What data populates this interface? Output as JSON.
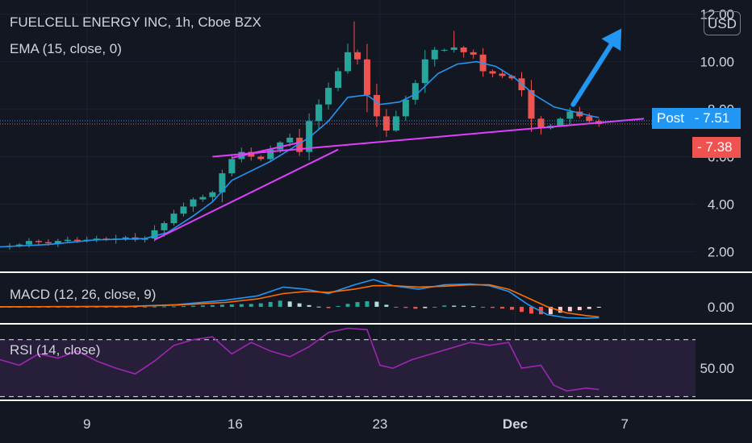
{
  "header": {
    "title": "FUELCELL ENERGY INC, 1h, Cboe BZX",
    "ema_label": "EMA (15, close, 0)",
    "macd_label": "MACD (12, 26, close, 9)",
    "rsi_label": "RSI (14, close)"
  },
  "currency_button": "USD",
  "badges": {
    "post_label": "Post",
    "post_price": "7.51",
    "last_price": "7.38"
  },
  "colors": {
    "background": "#131722",
    "up": "#26a69a",
    "down": "#ef5350",
    "ema": "#2196f3",
    "trendline": "#e040fb",
    "arrow": "#2196f3",
    "post_badge": "#2196f3",
    "last_badge": "#ef5350",
    "macd_line": "#2196f3",
    "signal_line": "#ff6d00",
    "rsi_line": "#9c27b0"
  },
  "chart_data": [
    {
      "type": "candlestick",
      "title": "FUELCELL ENERGY INC, 1h, Cboe BZX",
      "x_ticks": [
        "9",
        "16",
        "23",
        "Dec",
        "7"
      ],
      "y_ticks": [
        "2.00",
        "4.00",
        "6.00",
        "8.00",
        "10.00",
        "12.00"
      ],
      "ylim": [
        1.2,
        12.6
      ],
      "close_series": [
        [
          0,
          2.2
        ],
        [
          3,
          2.25
        ],
        [
          6,
          2.3
        ],
        [
          9,
          2.45
        ],
        [
          12,
          2.4
        ],
        [
          15,
          2.35
        ],
        [
          18,
          2.45
        ],
        [
          21,
          2.5
        ],
        [
          24,
          2.45
        ],
        [
          27,
          2.5
        ],
        [
          30,
          2.55
        ],
        [
          33,
          2.5
        ],
        [
          36,
          2.55
        ],
        [
          39,
          2.6
        ],
        [
          42,
          2.5
        ],
        [
          45,
          2.55
        ],
        [
          48,
          2.9
        ],
        [
          51,
          3.2
        ],
        [
          54,
          3.6
        ],
        [
          57,
          3.9
        ],
        [
          60,
          4.2
        ],
        [
          63,
          4.3
        ],
        [
          66,
          4.5
        ],
        [
          69,
          5.3
        ],
        [
          72,
          5.9
        ],
        [
          75,
          6.2
        ],
        [
          78,
          6.0
        ],
        [
          81,
          5.9
        ],
        [
          84,
          6.3
        ],
        [
          87,
          6.6
        ],
        [
          90,
          6.8
        ],
        [
          93,
          6.2
        ],
        [
          96,
          7.5
        ],
        [
          99,
          8.2
        ],
        [
          102,
          8.9
        ],
        [
          105,
          9.6
        ],
        [
          108,
          10.4
        ],
        [
          111,
          10.1
        ],
        [
          114,
          8.6
        ],
        [
          117,
          7.7
        ],
        [
          120,
          7.1
        ],
        [
          123,
          7.7
        ],
        [
          126,
          8.4
        ],
        [
          129,
          9.1
        ],
        [
          132,
          10.1
        ],
        [
          135,
          10.5
        ],
        [
          138,
          10.5
        ],
        [
          141,
          10.6
        ],
        [
          144,
          10.4
        ],
        [
          147,
          10.3
        ],
        [
          150,
          9.6
        ],
        [
          153,
          9.5
        ],
        [
          156,
          9.4
        ],
        [
          159,
          9.3
        ],
        [
          162,
          8.8
        ],
        [
          165,
          7.6
        ],
        [
          168,
          7.2
        ],
        [
          171,
          7.3
        ],
        [
          174,
          7.6
        ],
        [
          177,
          7.9
        ],
        [
          180,
          7.7
        ],
        [
          183,
          7.5
        ],
        [
          186,
          7.38
        ]
      ],
      "ema_series": [
        [
          0,
          2.2
        ],
        [
          15,
          2.3
        ],
        [
          30,
          2.5
        ],
        [
          45,
          2.55
        ],
        [
          52,
          2.8
        ],
        [
          60,
          3.5
        ],
        [
          66,
          4.1
        ],
        [
          72,
          5.0
        ],
        [
          78,
          5.4
        ],
        [
          84,
          5.8
        ],
        [
          90,
          6.3
        ],
        [
          96,
          6.8
        ],
        [
          102,
          7.5
        ],
        [
          108,
          8.5
        ],
        [
          114,
          8.6
        ],
        [
          118,
          8.2
        ],
        [
          124,
          8.3
        ],
        [
          130,
          8.7
        ],
        [
          136,
          9.5
        ],
        [
          142,
          9.9
        ],
        [
          148,
          10.0
        ],
        [
          154,
          9.8
        ],
        [
          160,
          9.3
        ],
        [
          166,
          8.6
        ],
        [
          172,
          8.1
        ],
        [
          178,
          7.9
        ],
        [
          184,
          7.7
        ],
        [
          186,
          7.65
        ]
      ],
      "annotations": {
        "lower_trendline": [
          [
            48,
            2.5
          ],
          [
            105,
            6.3
          ]
        ],
        "upper_trendline": [
          [
            66,
            6.0
          ],
          [
            200,
            7.6
          ]
        ],
        "arrow": [
          [
            178,
            8.2
          ],
          [
            193,
            11.4
          ]
        ]
      },
      "post_price": 7.51,
      "last_price": 7.38
    },
    {
      "type": "histogram_line",
      "title": "MACD (12, 26, close, 9)",
      "y_ticks": [
        "0.00"
      ],
      "ylim": [
        -0.35,
        0.75
      ],
      "macd_series": [
        [
          0,
          0
        ],
        [
          40,
          0.01
        ],
        [
          55,
          0.05
        ],
        [
          70,
          0.15
        ],
        [
          80,
          0.25
        ],
        [
          88,
          0.45
        ],
        [
          95,
          0.4
        ],
        [
          102,
          0.3
        ],
        [
          110,
          0.5
        ],
        [
          116,
          0.62
        ],
        [
          122,
          0.48
        ],
        [
          130,
          0.4
        ],
        [
          138,
          0.5
        ],
        [
          146,
          0.52
        ],
        [
          152,
          0.48
        ],
        [
          158,
          0.35
        ],
        [
          164,
          0.05
        ],
        [
          170,
          -0.18
        ],
        [
          176,
          -0.25
        ],
        [
          182,
          -0.26
        ],
        [
          186,
          -0.25
        ]
      ],
      "signal_series": [
        [
          0,
          0
        ],
        [
          40,
          0.01
        ],
        [
          55,
          0.04
        ],
        [
          70,
          0.1
        ],
        [
          80,
          0.18
        ],
        [
          88,
          0.3
        ],
        [
          95,
          0.35
        ],
        [
          102,
          0.33
        ],
        [
          110,
          0.4
        ],
        [
          116,
          0.48
        ],
        [
          122,
          0.48
        ],
        [
          130,
          0.45
        ],
        [
          138,
          0.47
        ],
        [
          146,
          0.5
        ],
        [
          152,
          0.5
        ],
        [
          158,
          0.4
        ],
        [
          164,
          0.2
        ],
        [
          170,
          0.0
        ],
        [
          176,
          -0.14
        ],
        [
          182,
          -0.2
        ],
        [
          186,
          -0.23
        ]
      ]
    },
    {
      "type": "line",
      "title": "RSI (14, close)",
      "y_ticks": [
        "50.00"
      ],
      "ylim": [
        28,
        80
      ],
      "bands": [
        70,
        30
      ],
      "rsi_series": [
        [
          0,
          56
        ],
        [
          6,
          52
        ],
        [
          12,
          60
        ],
        [
          18,
          57
        ],
        [
          24,
          62
        ],
        [
          30,
          55
        ],
        [
          36,
          50
        ],
        [
          42,
          46
        ],
        [
          48,
          55
        ],
        [
          54,
          66
        ],
        [
          60,
          70
        ],
        [
          66,
          72
        ],
        [
          72,
          60
        ],
        [
          78,
          68
        ],
        [
          84,
          62
        ],
        [
          90,
          58
        ],
        [
          96,
          65
        ],
        [
          102,
          75
        ],
        [
          108,
          78
        ],
        [
          114,
          77
        ],
        [
          118,
          52
        ],
        [
          122,
          50
        ],
        [
          128,
          56
        ],
        [
          134,
          60
        ],
        [
          140,
          64
        ],
        [
          146,
          68
        ],
        [
          152,
          66
        ],
        [
          158,
          68
        ],
        [
          162,
          50
        ],
        [
          168,
          52
        ],
        [
          172,
          38
        ],
        [
          176,
          34
        ],
        [
          182,
          36
        ],
        [
          186,
          35
        ]
      ]
    }
  ]
}
